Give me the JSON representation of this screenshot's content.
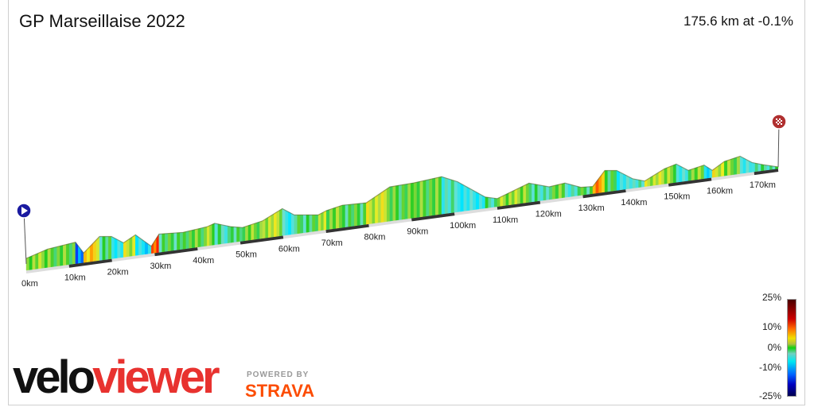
{
  "header": {
    "title": "GP Marseillaise 2022",
    "summary": "175.6 km at -0.1%"
  },
  "legend": {
    "labels": [
      "25%",
      "10%",
      "0%",
      "-10%",
      "-25%"
    ]
  },
  "branding": {
    "logo_velo": "velo",
    "logo_viewer": "viewer",
    "powered_by": "POWERED BY",
    "strava": "STRAVA"
  },
  "colors": {
    "start_marker": "#1a1aa0",
    "finish_marker": "#b03030",
    "strava": "#fc4c02",
    "logo_red": "#e8322f"
  },
  "chart_data": {
    "type": "area",
    "title": "GP Marseillaise 2022",
    "xlabel": "distance",
    "total_km": 175.6,
    "avg_gradient_pct": -0.1,
    "x_ticks": [
      "0km",
      "10km",
      "20km",
      "30km",
      "40km",
      "50km",
      "60km",
      "70km",
      "80km",
      "90km",
      "100km",
      "110km",
      "120km",
      "130km",
      "140km",
      "150km",
      "160km",
      "170km"
    ],
    "gradient_scale_pct": [
      -25,
      25
    ],
    "profile": [
      [
        0,
        225
      ],
      [
        5.0,
        345
      ],
      [
        11.5,
        405
      ],
      [
        13.4,
        180
      ],
      [
        17.1,
        450
      ],
      [
        19.9,
        420
      ],
      [
        22.7,
        270
      ],
      [
        25.5,
        390
      ],
      [
        29.2,
        135
      ],
      [
        31.0,
        345
      ],
      [
        36.6,
        315
      ],
      [
        42.2,
        360
      ],
      [
        44.0,
        405
      ],
      [
        47.8,
        300
      ],
      [
        50.5,
        255
      ],
      [
        55.2,
        330
      ],
      [
        59.8,
        510
      ],
      [
        62.6,
        360
      ],
      [
        68.2,
        300
      ],
      [
        70.1,
        360
      ],
      [
        73.8,
        420
      ],
      [
        79.4,
        405
      ],
      [
        84.9,
        645
      ],
      [
        90.5,
        660
      ],
      [
        97.0,
        705
      ],
      [
        100.7,
        570
      ],
      [
        107.2,
        210
      ],
      [
        110.0,
        150
      ],
      [
        117.4,
        360
      ],
      [
        122.1,
        240
      ],
      [
        125.8,
        270
      ],
      [
        129.5,
        150
      ],
      [
        132.3,
        135
      ],
      [
        135.1,
        405
      ],
      [
        137.9,
        375
      ],
      [
        141.6,
        180
      ],
      [
        144.4,
        105
      ],
      [
        149.0,
        285
      ],
      [
        151.8,
        345
      ],
      [
        154.6,
        195
      ],
      [
        158.3,
        255
      ],
      [
        160.2,
        135
      ],
      [
        163.0,
        270
      ],
      [
        166.7,
        330
      ],
      [
        169.5,
        180
      ],
      [
        172.3,
        105
      ],
      [
        175.6,
        30
      ]
    ]
  }
}
